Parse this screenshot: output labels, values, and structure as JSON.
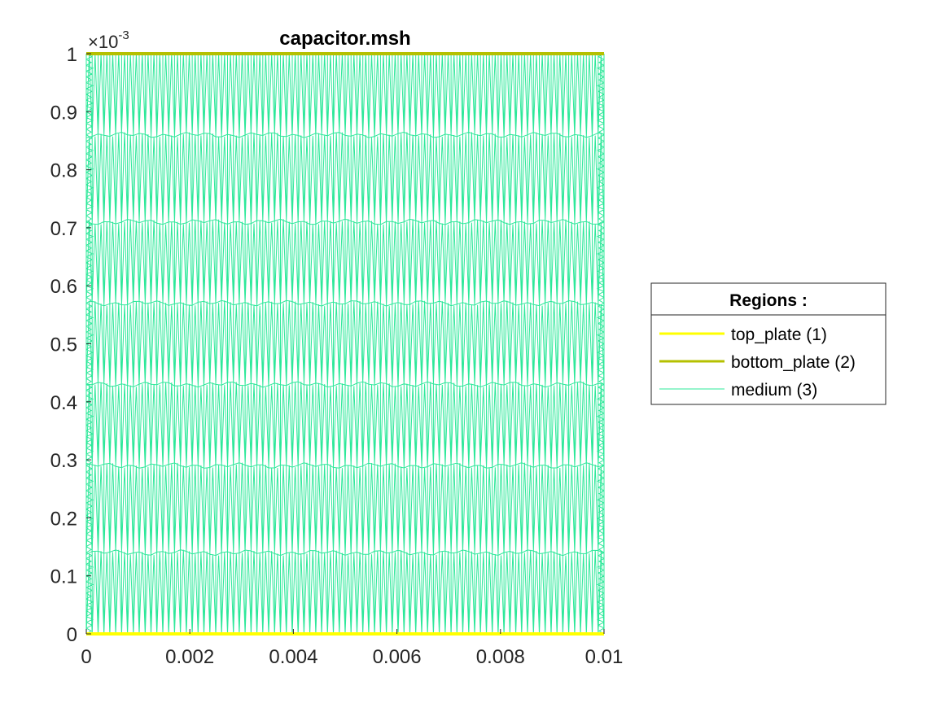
{
  "chart_data": {
    "type": "mesh",
    "title": "capacitor.msh",
    "xlabel": "",
    "ylabel": "",
    "xlim": [
      0,
      0.01
    ],
    "ylim": [
      0,
      0.001
    ],
    "xticks": [
      0,
      0.002,
      0.004,
      0.006,
      0.008,
      0.01
    ],
    "xtick_labels": [
      "0",
      "0.002",
      "0.004",
      "0.006",
      "0.008",
      "0.01"
    ],
    "yticks": [
      0,
      0.1,
      0.2,
      0.3,
      0.4,
      0.5,
      0.6,
      0.7,
      0.8,
      0.9,
      1
    ],
    "ytick_labels": [
      "0",
      "0.1",
      "0.2",
      "0.3",
      "0.4",
      "0.5",
      "0.6",
      "0.7",
      "0.8",
      "0.9",
      "1"
    ],
    "y_exponent_base": "×10",
    "y_exponent_power": "-3",
    "grid": false,
    "legend": {
      "title": "Regions :",
      "placement": "outside-right",
      "entries": [
        {
          "label": "top_plate (1)",
          "color": "#ffff00"
        },
        {
          "label": "bottom_plate (2)",
          "color": "#b5c000"
        },
        {
          "label": "medium (3)",
          "color": "#2ee89a"
        }
      ]
    },
    "series": [
      {
        "name": "top_plate (1)",
        "kind": "boundary-line",
        "x": [
          0,
          0.01
        ],
        "y": [
          0,
          0
        ],
        "color": "#ffff00"
      },
      {
        "name": "bottom_plate (2)",
        "kind": "boundary-line",
        "x": [
          0,
          0.01
        ],
        "y": [
          0.001,
          0.001
        ],
        "color": "#b5c000"
      },
      {
        "name": "medium (3)",
        "kind": "triangular-mesh",
        "x_range": [
          0,
          0.01
        ],
        "y_range": [
          0,
          0.001
        ],
        "color": "#2ee89a",
        "mesh_rows_y": [
          0.00014,
          0.00029,
          0.00043,
          0.00057,
          0.00071,
          0.00086
        ],
        "mesh_columns": 88
      }
    ]
  }
}
